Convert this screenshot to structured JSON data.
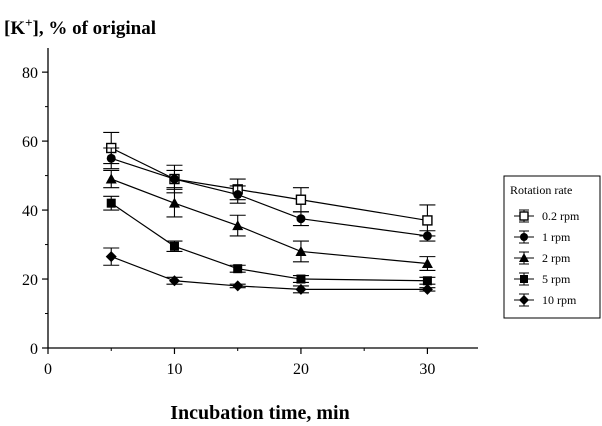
{
  "chart_data": {
    "type": "line",
    "title_main": "[K",
    "title_sup": "+",
    "title_rest": "], % of original",
    "xlabel": "Incubation time, min",
    "ylabel": "",
    "xlim": [
      0,
      34
    ],
    "ylim": [
      0,
      87
    ],
    "x_ticks": [
      0,
      10,
      20,
      30
    ],
    "y_ticks": [
      0,
      20,
      40,
      60,
      80
    ],
    "x": [
      5,
      10,
      15,
      20,
      30
    ],
    "grid": false,
    "legend": {
      "title": "Rotation rate",
      "placement": "right"
    },
    "series": [
      {
        "name": "0.2 rpm",
        "marker": "open-square",
        "values": [
          58,
          49,
          46,
          43,
          37
        ],
        "errors": [
          4.5,
          4,
          3,
          3.5,
          4.5
        ]
      },
      {
        "name": "1 rpm",
        "marker": "filled-circle",
        "values": [
          55,
          49,
          44.5,
          37.5,
          32.5
        ],
        "errors": [
          3,
          2.5,
          2.5,
          2,
          1.5
        ]
      },
      {
        "name": "2 rpm",
        "marker": "filled-triangle",
        "values": [
          49,
          42,
          35.5,
          28,
          24.5
        ],
        "errors": [
          2.5,
          4,
          3,
          3,
          2
        ]
      },
      {
        "name": "5 rpm",
        "marker": "filled-square",
        "values": [
          42,
          29.5,
          23,
          20,
          19.5
        ],
        "errors": [
          2,
          1.5,
          1,
          1,
          1
        ]
      },
      {
        "name": "10 rpm",
        "marker": "filled-diamond",
        "values": [
          26.5,
          19.5,
          18,
          17,
          17
        ],
        "errors": [
          2.5,
          1,
          0.5,
          1,
          0.5
        ]
      }
    ]
  }
}
